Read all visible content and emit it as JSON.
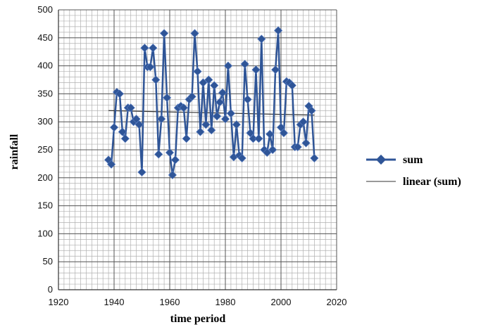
{
  "chart_data": {
    "type": "line",
    "title": "",
    "xlabel": "time period",
    "ylabel": "rainfall",
    "xlim": [
      1920,
      2020
    ],
    "ylim": [
      0,
      500
    ],
    "x_ticks": [
      "1920",
      "1940",
      "1960",
      "1980",
      "2000",
      "2020"
    ],
    "y_ticks": [
      "0",
      "50",
      "100",
      "150",
      "200",
      "250",
      "300",
      "350",
      "400",
      "450",
      "500"
    ],
    "grid": true,
    "legend_position": "right",
    "series": [
      {
        "name": "sum",
        "color": "#2f5597",
        "marker": "diamond",
        "x": [
          1938,
          1939,
          1940,
          1941,
          1942,
          1943,
          1944,
          1945,
          1946,
          1947,
          1948,
          1949,
          1950,
          1951,
          1952,
          1953,
          1954,
          1955,
          1956,
          1957,
          1958,
          1959,
          1960,
          1961,
          1962,
          1963,
          1964,
          1965,
          1966,
          1967,
          1968,
          1969,
          1970,
          1971,
          1972,
          1973,
          1974,
          1975,
          1976,
          1977,
          1978,
          1979,
          1980,
          1981,
          1982,
          1983,
          1984,
          1985,
          1986,
          1987,
          1988,
          1989,
          1990,
          1991,
          1992,
          1993,
          1994,
          1995,
          1996,
          1997,
          1998,
          1999,
          2000,
          2001,
          2002,
          2003,
          2004,
          2005,
          2006,
          2007,
          2008,
          2009,
          2010,
          2011,
          2012
        ],
        "y": [
          232,
          224,
          290,
          353,
          350,
          282,
          270,
          325,
          325,
          300,
          305,
          295,
          210,
          432,
          398,
          398,
          432,
          375,
          242,
          305,
          458,
          343,
          245,
          205,
          232,
          325,
          328,
          325,
          270,
          340,
          345,
          458,
          390,
          282,
          370,
          295,
          375,
          285,
          365,
          310,
          335,
          352,
          305,
          400,
          315,
          237,
          295,
          240,
          235,
          403,
          340,
          280,
          270,
          393,
          270,
          448,
          250,
          245,
          278,
          250,
          393,
          463,
          290,
          280,
          372,
          370,
          365,
          255,
          255,
          295,
          300,
          262,
          328,
          320,
          235
        ]
      },
      {
        "name": "linear (sum)",
        "color": "#333333",
        "x": [
          1938,
          2012
        ],
        "y": [
          320,
          312
        ]
      }
    ]
  }
}
